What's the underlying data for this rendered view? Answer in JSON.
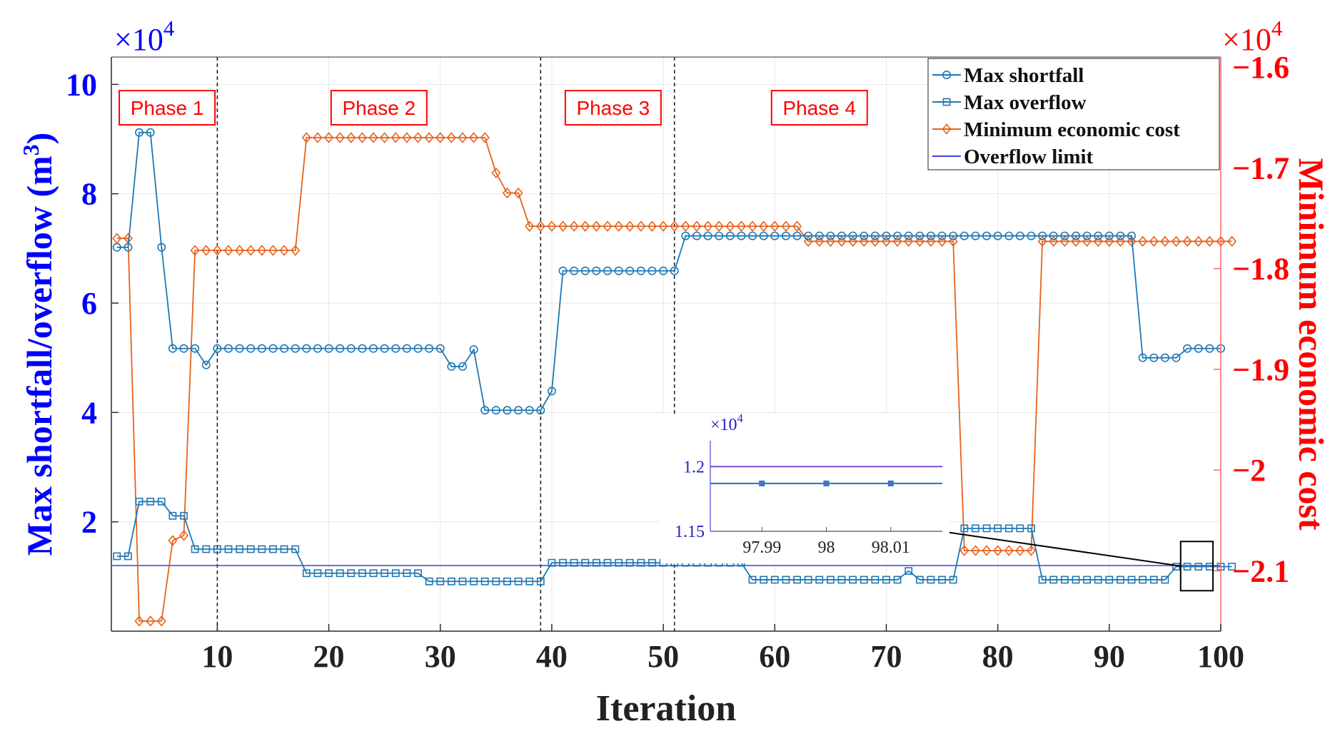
{
  "chart_data": {
    "type": "line",
    "xlabel": "Iteration",
    "ylabel_left": "Max shortfall/overflow (m",
    "ylabel_left_sup": "3",
    "ylabel_left_close": ")",
    "ylabel_right": "Minimum economic cost",
    "left_multiplier": "×10",
    "right_multiplier": "×10",
    "multiplier_exp": "4",
    "xlim": [
      0.5,
      100
    ],
    "ylim_left": [
      0,
      10.5
    ],
    "ylim_right": [
      -2.16,
      -1.59
    ],
    "x_ticks": [
      10,
      20,
      30,
      40,
      50,
      60,
      70,
      80,
      90,
      100
    ],
    "y_ticks_left": [
      2,
      4,
      6,
      8,
      10
    ],
    "y_ticks_right": [
      -2.1,
      -2.0,
      -1.9,
      -1.8,
      -1.7,
      -1.6
    ],
    "y_tick_labels_right": [
      "−2.1",
      "−2",
      "−1.9",
      "−1.8",
      "−1.7",
      "−1.6"
    ],
    "phase_dividers": [
      10,
      39,
      51
    ],
    "phases": [
      {
        "label": "Phase 1",
        "x": 5.5
      },
      {
        "label": "Phase 2",
        "x": 24.5
      },
      {
        "label": "Phase 3",
        "x": 45.5
      },
      {
        "label": "Phase 4",
        "x": 64.0
      }
    ],
    "series": [
      {
        "name": "Max shortfall",
        "axis": "left",
        "marker": "circle",
        "color": "#1f77b4",
        "values": [
          7.02,
          7.02,
          9.12,
          9.12,
          7.02,
          5.17,
          5.17,
          5.17,
          4.87,
          5.17,
          5.17,
          5.17,
          5.17,
          5.17,
          5.17,
          5.17,
          5.17,
          5.17,
          5.17,
          5.17,
          5.17,
          5.17,
          5.17,
          5.17,
          5.17,
          5.17,
          5.17,
          5.17,
          5.17,
          5.17,
          4.84,
          4.84,
          5.15,
          4.04,
          4.04,
          4.04,
          4.04,
          4.04,
          4.04,
          4.39,
          6.59,
          6.59,
          6.59,
          6.59,
          6.59,
          6.59,
          6.59,
          6.59,
          6.59,
          6.59,
          6.59,
          7.23,
          7.23,
          7.23,
          7.23,
          7.23,
          7.23,
          7.23,
          7.23,
          7.23,
          7.23,
          7.23,
          7.23,
          7.23,
          7.23,
          7.23,
          7.23,
          7.23,
          7.23,
          7.23,
          7.23,
          7.23,
          7.23,
          7.23,
          7.23,
          7.23,
          7.23,
          7.23,
          7.23,
          7.23,
          7.23,
          7.23,
          7.23,
          7.23,
          7.23,
          7.23,
          7.23,
          7.23,
          7.23,
          7.23,
          7.23,
          7.23,
          5.0,
          5.0,
          5.0,
          5.0,
          5.17,
          5.17,
          5.17,
          5.17
        ]
      },
      {
        "name": "Max overflow",
        "axis": "left",
        "marker": "square",
        "color": "#1f77b4",
        "values": [
          1.37,
          1.37,
          2.37,
          2.37,
          2.37,
          2.11,
          2.11,
          1.5,
          1.5,
          1.5,
          1.5,
          1.5,
          1.5,
          1.5,
          1.5,
          1.5,
          1.5,
          1.06,
          1.06,
          1.06,
          1.06,
          1.06,
          1.06,
          1.06,
          1.06,
          1.06,
          1.06,
          1.06,
          0.91,
          0.91,
          0.91,
          0.91,
          0.91,
          0.91,
          0.91,
          0.91,
          0.91,
          0.91,
          0.91,
          1.25,
          1.25,
          1.25,
          1.25,
          1.25,
          1.25,
          1.25,
          1.25,
          1.25,
          1.25,
          1.25,
          1.25,
          1.25,
          1.25,
          1.25,
          1.25,
          1.25,
          1.25,
          0.94,
          0.94,
          0.94,
          0.94,
          0.94,
          0.94,
          0.94,
          0.94,
          0.94,
          0.94,
          0.94,
          0.94,
          0.94,
          0.94,
          1.1,
          0.94,
          0.94,
          0.94,
          0.94,
          1.88,
          1.88,
          1.88,
          1.88,
          1.88,
          1.88,
          1.88,
          0.94,
          0.94,
          0.94,
          0.94,
          0.94,
          0.94,
          0.94,
          0.94,
          0.94,
          0.94,
          0.94,
          0.94,
          1.18,
          1.18,
          1.18,
          1.18,
          1.18,
          1.18
        ]
      },
      {
        "name": "Minimum economic cost",
        "axis": "right",
        "marker": "diamond",
        "color": "#e8611a",
        "values": [
          -1.77,
          -1.77,
          -2.15,
          -2.15,
          -2.15,
          -2.07,
          -2.065,
          -1.782,
          -1.782,
          -1.782,
          -1.782,
          -1.782,
          -1.782,
          -1.782,
          -1.782,
          -1.782,
          -1.782,
          -1.67,
          -1.67,
          -1.67,
          -1.67,
          -1.67,
          -1.67,
          -1.67,
          -1.67,
          -1.67,
          -1.67,
          -1.67,
          -1.67,
          -1.67,
          -1.67,
          -1.67,
          -1.67,
          -1.67,
          -1.705,
          -1.725,
          -1.725,
          -1.758,
          -1.758,
          -1.758,
          -1.758,
          -1.758,
          -1.758,
          -1.758,
          -1.758,
          -1.758,
          -1.758,
          -1.758,
          -1.758,
          -1.758,
          -1.758,
          -1.758,
          -1.758,
          -1.758,
          -1.758,
          -1.758,
          -1.758,
          -1.758,
          -1.758,
          -1.758,
          -1.758,
          -1.758,
          -1.773,
          -1.773,
          -1.773,
          -1.773,
          -1.773,
          -1.773,
          -1.773,
          -1.773,
          -1.773,
          -1.773,
          -1.773,
          -1.773,
          -1.773,
          -1.773,
          -2.08,
          -2.08,
          -2.08,
          -2.08,
          -2.08,
          -2.08,
          -2.08,
          -1.773,
          -1.773,
          -1.773,
          -1.773,
          -1.773,
          -1.773,
          -1.773,
          -1.773,
          -1.773,
          -1.773,
          -1.773,
          -1.773,
          -1.773,
          -1.773,
          -1.773,
          -1.773,
          -1.773,
          -1.773
        ]
      },
      {
        "name": "Overflow limit",
        "axis": "left",
        "marker": "none",
        "color": "#3f3fe0",
        "value": 1.2
      }
    ],
    "legend": {
      "position": "top-right",
      "entries": [
        "Max shortfall",
        "Max overflow",
        "Minimum economic cost",
        "Overflow limit"
      ]
    },
    "inset": {
      "x_ticks": [
        97.99,
        98,
        98.01
      ],
      "x_tick_labels": [
        "97.99",
        "98",
        "98.01"
      ],
      "y_ticks": [
        1.15,
        1.2
      ],
      "y_tick_labels": [
        "1.15",
        "1.2"
      ],
      "multiplier": "×10",
      "multiplier_exp": "4",
      "xlim": [
        97.982,
        98.018
      ],
      "ylim": [
        1.15,
        1.22
      ],
      "overflow_limit": 1.2,
      "max_overflow": 1.187,
      "marker_x": [
        97.99,
        98,
        98.01
      ]
    },
    "colors": {
      "left_axis": "#0000ff",
      "right_axis": "#ff0000",
      "phase_box": "#ff0000"
    }
  }
}
